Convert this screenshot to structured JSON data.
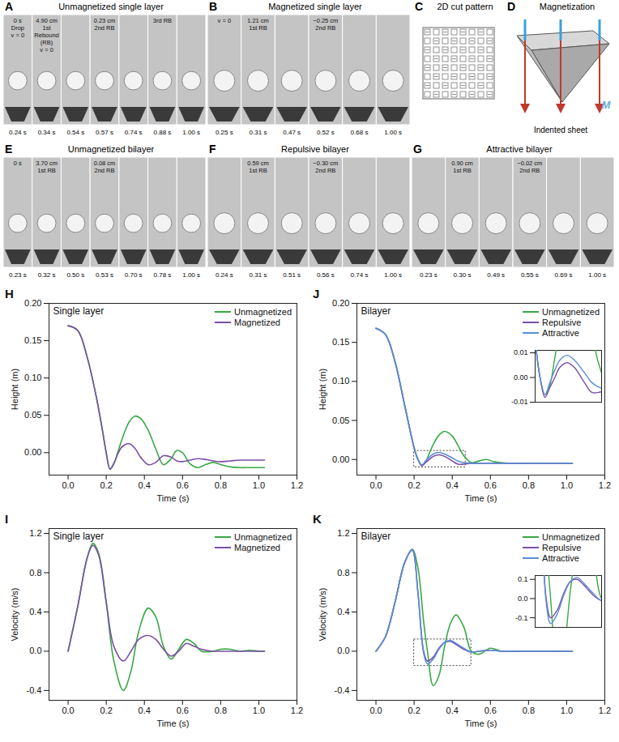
{
  "panels": [
    {
      "letter": "A",
      "type": "photo",
      "title": "Unmagnetized single layer",
      "frames": [
        {
          "time": "0.24 s",
          "labels": [
            "0 s",
            "Drop",
            "v = 0"
          ]
        },
        {
          "time": "0.34 s",
          "labels": [
            "4.90 cm",
            "1st Rebound (RB)",
            "v = 0"
          ]
        },
        {
          "time": "0.54 s",
          "labels": []
        },
        {
          "time": "0.57 s",
          "labels": [
            "0.23 cm",
            "2nd RB"
          ]
        },
        {
          "time": "0.74 s",
          "labels": []
        },
        {
          "time": "0.88 s",
          "labels": [
            "3rd RB"
          ]
        },
        {
          "time": "1.00 s",
          "labels": []
        }
      ]
    },
    {
      "letter": "B",
      "type": "photo",
      "title": "Magnetized single layer",
      "frames": [
        {
          "time": "0.25 s",
          "labels": [
            "v = 0"
          ]
        },
        {
          "time": "0.31 s",
          "labels": [
            "1.21 cm",
            "1st RB"
          ]
        },
        {
          "time": "0.47 s",
          "labels": []
        },
        {
          "time": "0.52 s",
          "labels": [
            "−0.25 cm",
            "2nd RB"
          ]
        },
        {
          "time": "0.68 s",
          "labels": []
        },
        {
          "time": "1.00 s",
          "labels": []
        }
      ]
    },
    {
      "letter": "C",
      "type": "pattern",
      "title": "2D cut pattern"
    },
    {
      "letter": "D",
      "type": "diagram",
      "title": "Magnetization",
      "labels": [
        "M"
      ],
      "caption": "Indented sheet"
    },
    {
      "letter": "E",
      "type": "photo",
      "title": "Unmagnetized bilayer",
      "frames": [
        {
          "time": "0.23 s",
          "labels": [
            "0 s"
          ]
        },
        {
          "time": "0.32 s",
          "labels": [
            "3.70 cm",
            "1st RB"
          ]
        },
        {
          "time": "0.50 s",
          "labels": []
        },
        {
          "time": "0.53 s",
          "labels": [
            "0.08 cm",
            "2nd RB"
          ]
        },
        {
          "time": "0.70 s",
          "labels": []
        },
        {
          "time": "0.78 s",
          "labels": []
        },
        {
          "time": "1.00 s",
          "labels": []
        }
      ]
    },
    {
      "letter": "F",
      "type": "photo",
      "title": "Repulsive bilayer",
      "frames": [
        {
          "time": "0.24 s",
          "labels": []
        },
        {
          "time": "0.31 s",
          "labels": [
            "0.59 cm",
            "1st RB"
          ]
        },
        {
          "time": "0.51 s",
          "labels": []
        },
        {
          "time": "0.56 s",
          "labels": [
            "−0.30 cm",
            "2nd RB"
          ]
        },
        {
          "time": "0.74 s",
          "labels": []
        },
        {
          "time": "1.00 s",
          "labels": []
        }
      ]
    },
    {
      "letter": "G",
      "type": "photo",
      "title": "Attractive bilayer",
      "frames": [
        {
          "time": "0.23 s",
          "labels": []
        },
        {
          "time": "0.30 s",
          "labels": [
            "0.90 cm",
            "1st RB"
          ]
        },
        {
          "time": "0.49 s",
          "labels": []
        },
        {
          "time": "0.55 s",
          "labels": [
            "−0.02 cm",
            "2nd RB"
          ]
        },
        {
          "time": "0.69 s",
          "labels": []
        },
        {
          "time": "1.00 s",
          "labels": []
        }
      ]
    }
  ],
  "chart_data": [
    {
      "panel": "H",
      "type": "line",
      "title": "Single layer",
      "x_label": "Time (s)",
      "y_label": "Height (m)",
      "xlim": [
        -0.1,
        1.2
      ],
      "xticks": [
        {
          "value": 0,
          "label": "0.0"
        },
        0.2,
        0.4,
        0.6,
        0.8,
        {
          "value": 1,
          "label": "1.0"
        },
        1.2
      ],
      "ylim": [
        -0.03,
        0.2
      ],
      "yticks": [
        {
          "value": 0,
          "label": "0.00"
        },
        0.05,
        {
          "value": 0.1,
          "label": "0.10"
        },
        0.15,
        {
          "value": 0.2,
          "label": "0.20"
        }
      ],
      "legend": "top-right",
      "x": [
        0,
        0.05,
        0.1,
        0.15,
        0.18,
        0.2,
        0.22,
        0.24,
        0.26,
        0.28,
        0.3,
        0.32,
        0.35,
        0.38,
        0.42,
        0.46,
        0.5,
        0.54,
        0.57,
        0.6,
        0.64,
        0.68,
        0.72,
        0.76,
        0.8,
        0.85,
        0.9,
        0.95,
        1.0,
        1.03
      ],
      "series": [
        {
          "name": "Unmagnetized",
          "color": "#3aa845",
          "values": [
            0.17,
            0.164,
            0.128,
            0.072,
            0.03,
            0.0,
            -0.022,
            -0.015,
            0.0,
            0.016,
            0.03,
            0.041,
            0.049,
            0.046,
            0.03,
            0.005,
            -0.016,
            -0.008,
            0.003,
            0.0,
            -0.015,
            -0.02,
            -0.016,
            -0.013,
            -0.016,
            -0.019,
            -0.02,
            -0.02,
            -0.02,
            -0.02
          ]
        },
        {
          "name": "Magnetized",
          "color": "#7b4fa6",
          "values": [
            0.17,
            0.164,
            0.128,
            0.072,
            0.03,
            0.0,
            -0.022,
            -0.014,
            -0.002,
            0.007,
            0.011,
            0.012,
            0.006,
            -0.006,
            -0.016,
            -0.013,
            -0.004,
            -0.006,
            -0.011,
            -0.012,
            -0.01,
            -0.008,
            -0.009,
            -0.011,
            -0.012,
            -0.011,
            -0.01,
            -0.01,
            -0.01,
            -0.01
          ]
        }
      ]
    },
    {
      "panel": "I",
      "type": "line",
      "title": "Single layer",
      "x_label": "Time (s)",
      "y_label": "Velocity (m/s)",
      "xlim": [
        -0.1,
        1.2
      ],
      "xticks": [
        {
          "value": 0,
          "label": "0.0"
        },
        0.2,
        0.4,
        0.6,
        0.8,
        {
          "value": 1,
          "label": "1.0"
        },
        1.2
      ],
      "ylim": [
        -0.5,
        1.25
      ],
      "yticks": [
        -0.4,
        {
          "value": 0,
          "label": "0.0"
        },
        0.4,
        0.8,
        1.2
      ],
      "legend": "top-right",
      "x": [
        0,
        0.05,
        0.1,
        0.13,
        0.16,
        0.2,
        0.24,
        0.29,
        0.33,
        0.37,
        0.42,
        0.46,
        0.5,
        0.54,
        0.58,
        0.62,
        0.66,
        0.7,
        0.76,
        0.8,
        0.85,
        0.9,
        0.95,
        1.0,
        1.03
      ],
      "series": [
        {
          "name": "Unmagnetized",
          "color": "#3aa845",
          "values": [
            0,
            0.45,
            0.95,
            1.1,
            1.0,
            0.5,
            -0.1,
            -0.4,
            -0.2,
            0.2,
            0.44,
            0.35,
            0.05,
            -0.08,
            0.02,
            0.12,
            0.08,
            0.0,
            0.0,
            0.02,
            0.02,
            0.0,
            0.01,
            0.0,
            0.0
          ]
        },
        {
          "name": "Magnetized",
          "color": "#7b4fa6",
          "values": [
            0,
            0.45,
            0.95,
            1.08,
            0.98,
            0.5,
            0.05,
            -0.1,
            0.0,
            0.12,
            0.16,
            0.12,
            0.02,
            -0.05,
            0.0,
            0.08,
            0.05,
            0.02,
            0.0,
            0.0,
            0.0,
            0.0,
            0.0,
            0.0,
            0.0
          ]
        }
      ]
    },
    {
      "panel": "J",
      "type": "line",
      "title": "Bilayer",
      "x_label": "Time (s)",
      "y_label": "Height (m)",
      "xlim": [
        -0.1,
        1.2
      ],
      "xticks": [
        {
          "value": 0,
          "label": "0.0"
        },
        0.2,
        0.4,
        0.6,
        0.8,
        {
          "value": 1,
          "label": "1.0"
        },
        1.2
      ],
      "ylim": [
        -0.02,
        0.2
      ],
      "yticks": [
        {
          "value": 0,
          "label": "0.00"
        },
        0.05,
        {
          "value": 0.1,
          "label": "0.10"
        },
        0.15,
        {
          "value": 0.2,
          "label": "0.20"
        }
      ],
      "legend": "top-right",
      "x": [
        0,
        0.05,
        0.1,
        0.15,
        0.2,
        0.22,
        0.24,
        0.26,
        0.28,
        0.3,
        0.33,
        0.36,
        0.4,
        0.43,
        0.46,
        0.5,
        0.54,
        0.58,
        0.62,
        0.7,
        0.8,
        0.9,
        1.0,
        1.03
      ],
      "series": [
        {
          "name": "Unmagnetized",
          "color": "#3aa845",
          "values": [
            0.168,
            0.16,
            0.125,
            0.07,
            0.015,
            0.0,
            -0.007,
            -0.003,
            0.008,
            0.019,
            0.031,
            0.036,
            0.03,
            0.018,
            0.005,
            -0.004,
            -0.002,
            0.0,
            -0.003,
            -0.005,
            -0.005,
            -0.005,
            -0.005,
            -0.005
          ]
        },
        {
          "name": "Repulsive",
          "color": "#7b4fa6",
          "values": [
            0.168,
            0.16,
            0.125,
            0.07,
            0.015,
            0.0,
            -0.008,
            -0.004,
            0.0,
            0.004,
            0.006,
            0.004,
            -0.002,
            -0.006,
            -0.006,
            -0.005,
            -0.005,
            -0.005,
            -0.005,
            -0.005,
            -0.005,
            -0.005,
            -0.005,
            -0.005
          ]
        },
        {
          "name": "Attractive",
          "color": "#5b8ed6",
          "values": [
            0.168,
            0.16,
            0.125,
            0.07,
            0.015,
            0.0,
            -0.007,
            -0.002,
            0.003,
            0.007,
            0.009,
            0.007,
            0.002,
            -0.002,
            -0.004,
            -0.005,
            -0.005,
            -0.005,
            -0.005,
            -0.005,
            -0.005,
            -0.005,
            -0.005,
            -0.005
          ]
        }
      ],
      "inset": {
        "type": "line",
        "xlim": [
          0.2,
          0.47
        ],
        "ylim": [
          -0.01,
          0.011
        ],
        "yticks": [
          -0.01,
          {
            "value": 0,
            "label": "0.00"
          },
          0.01
        ],
        "tick_labels": "y"
      }
    },
    {
      "panel": "K",
      "type": "line",
      "title": "Bilayer",
      "x_label": "Time (s)",
      "y_label": "Velocity (m/s)",
      "xlim": [
        -0.1,
        1.2
      ],
      "xticks": [
        {
          "value": 0,
          "label": "0.0"
        },
        0.2,
        0.4,
        0.6,
        0.8,
        {
          "value": 1,
          "label": "1.0"
        },
        1.2
      ],
      "ylim": [
        -0.5,
        1.25
      ],
      "yticks": [
        -0.4,
        {
          "value": 0,
          "label": "0.0"
        },
        0.4,
        0.8,
        1.2
      ],
      "legend": "top-right",
      "x": [
        0,
        0.05,
        0.1,
        0.15,
        0.19,
        0.22,
        0.25,
        0.27,
        0.3,
        0.33,
        0.36,
        0.39,
        0.42,
        0.46,
        0.5,
        0.54,
        0.6,
        0.66,
        0.75,
        0.85,
        0.95,
        1.03
      ],
      "series": [
        {
          "name": "Unmagnetized",
          "color": "#3aa845",
          "values": [
            0,
            0.15,
            0.5,
            0.9,
            1.04,
            0.85,
            0.3,
            0.0,
            -0.35,
            -0.25,
            0.05,
            0.28,
            0.37,
            0.25,
            0.0,
            -0.03,
            0.03,
            0.0,
            0,
            0,
            0,
            0
          ]
        },
        {
          "name": "Repulsive",
          "color": "#7b4fa6",
          "values": [
            0,
            0.15,
            0.5,
            0.9,
            1.03,
            0.6,
            0.0,
            -0.1,
            -0.06,
            0.03,
            0.09,
            0.1,
            0.07,
            0.02,
            -0.01,
            0.0,
            0.01,
            0,
            0,
            0,
            0,
            0
          ]
        },
        {
          "name": "Attractive",
          "color": "#5b8ed6",
          "values": [
            0,
            0.15,
            0.5,
            0.9,
            1.03,
            0.6,
            -0.02,
            -0.13,
            -0.08,
            0.02,
            0.09,
            0.11,
            0.08,
            0.03,
            -0.01,
            0.0,
            0.01,
            0,
            0,
            0,
            0,
            0
          ]
        }
      ],
      "inset": {
        "type": "line",
        "xlim": [
          0.2,
          0.5
        ],
        "ylim": [
          -0.15,
          0.12
        ],
        "yticks": [
          -0.1,
          {
            "value": 0,
            "label": "0.0"
          },
          0.1
        ],
        "tick_labels": "y"
      }
    }
  ]
}
